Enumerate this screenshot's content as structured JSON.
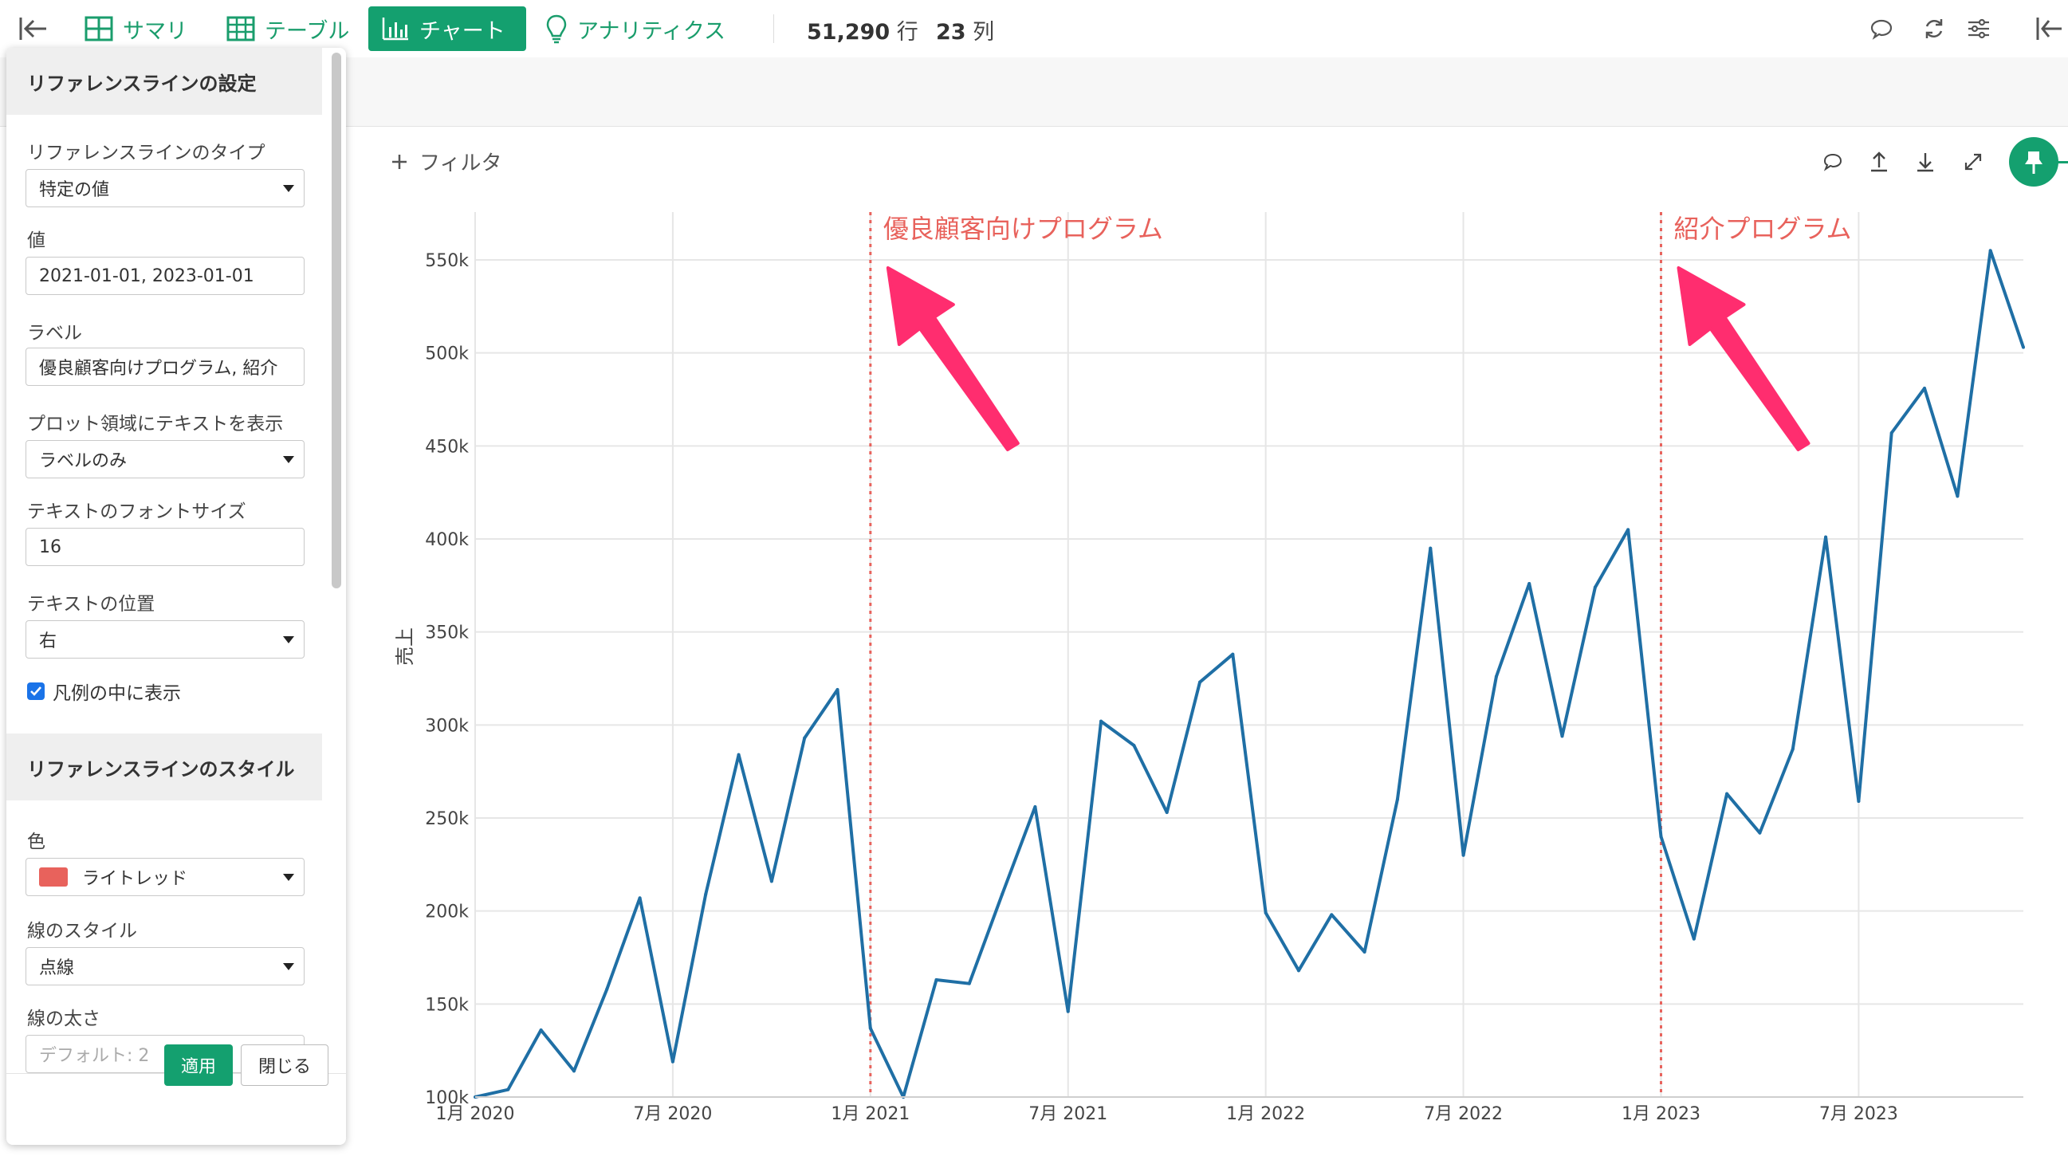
{
  "toolbar": {
    "tabs": [
      {
        "label": "サマリ",
        "icon": "grid-icon"
      },
      {
        "label": "テーブル",
        "icon": "table-icon"
      },
      {
        "label": "チャート",
        "icon": "bar-chart-icon"
      },
      {
        "label": "アナリティクス",
        "icon": "lightbulb-icon"
      }
    ],
    "rows": "51,290",
    "rows_unit": "行",
    "cols": "23",
    "cols_unit": "列"
  },
  "chart_header": {
    "filter_label": "フィルタ"
  },
  "panel": {
    "section1_title": "リファレンスラインの設定",
    "type_label": "リファレンスラインのタイプ",
    "type_value": "特定の値",
    "value_label": "値",
    "value_value": "2021-01-01, 2023-01-01",
    "label_label": "ラベル",
    "label_value": "優良顧客向けプログラム, 紹介",
    "plot_text_label": "プロット領域にテキストを表示",
    "plot_text_value": "ラベルのみ",
    "font_size_label": "テキストのフォントサイズ",
    "font_size_value": "16",
    "text_pos_label": "テキストの位置",
    "text_pos_value": "右",
    "legend_checkbox": "凡例の中に表示",
    "section2_title": "リファレンスラインのスタイル",
    "color_label": "色",
    "color_value": "ライトレッド",
    "color_hex": "#e8625c",
    "line_style_label": "線のスタイル",
    "line_style_value": "点線",
    "line_width_label": "線の太さ",
    "line_width_placeholder": "デフォルト: 2",
    "apply_button": "適用",
    "close_button": "閉じる"
  },
  "chart_data": {
    "type": "line",
    "ylabel": "売上",
    "ylim": [
      100000,
      550000
    ],
    "y_ticks": [
      "100k",
      "150k",
      "200k",
      "250k",
      "300k",
      "350k",
      "400k",
      "450k",
      "500k",
      "550k"
    ],
    "x_ticks": [
      "1月 2020",
      "7月 2020",
      "1月 2021",
      "7月 2021",
      "1月 2022",
      "7月 2022",
      "1月 2023",
      "7月 2023"
    ],
    "x_start": "2020-01",
    "series": [
      {
        "color": "#1f6fa5",
        "values": [
          100000,
          104000,
          136000,
          114000,
          158000,
          207000,
          119000,
          209000,
          284000,
          216000,
          293000,
          319000,
          137000,
          100000,
          163000,
          161000,
          209000,
          256000,
          146000,
          302000,
          289000,
          253000,
          323000,
          338000,
          199000,
          168000,
          198000,
          178000,
          260000,
          395000,
          230000,
          326000,
          376000,
          294000,
          374000,
          405000,
          240000,
          185000,
          263000,
          242000,
          287000,
          401000,
          259000,
          457000,
          481000,
          423000,
          555000,
          503000
        ]
      }
    ],
    "reference_lines": [
      {
        "x": "2021-01",
        "label": "優良顧客向けプログラム",
        "color": "#e8625c",
        "style": "dotted"
      },
      {
        "x": "2023-01",
        "label": "紹介プログラム",
        "color": "#e8625c",
        "style": "dotted"
      }
    ],
    "grid": true
  }
}
